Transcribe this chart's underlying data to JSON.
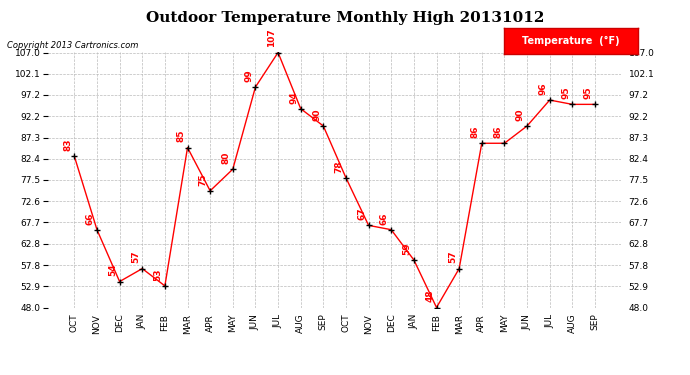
{
  "title": "Outdoor Temperature Monthly High 20131012",
  "copyright": "Copyright 2013 Cartronics.com",
  "legend_label": "Temperature  (°F)",
  "months": [
    "OCT",
    "NOV",
    "DEC",
    "JAN",
    "FEB",
    "MAR",
    "APR",
    "MAY",
    "JUN",
    "JUL",
    "AUG",
    "SEP",
    "OCT",
    "NOV",
    "DEC",
    "JAN",
    "FEB",
    "MAR",
    "APR",
    "MAY",
    "JUN",
    "JUL",
    "AUG",
    "SEP"
  ],
  "values": [
    83,
    66,
    54,
    57,
    53,
    85,
    75,
    80,
    99,
    107,
    94,
    90,
    78,
    67,
    66,
    59,
    48,
    57,
    86,
    86,
    90,
    96,
    95,
    95
  ],
  "ylim": [
    48.0,
    107.0
  ],
  "yticks": [
    48.0,
    52.9,
    57.8,
    62.8,
    67.7,
    72.6,
    77.5,
    82.4,
    87.3,
    92.2,
    97.2,
    102.1,
    107.0
  ],
  "line_color": "red",
  "marker_color": "black",
  "marker": "+",
  "grid_color": "#bbbbbb",
  "background_color": "white",
  "title_fontsize": 11,
  "value_fontsize": 6.5,
  "legend_bg": "red",
  "legend_text_color": "white"
}
